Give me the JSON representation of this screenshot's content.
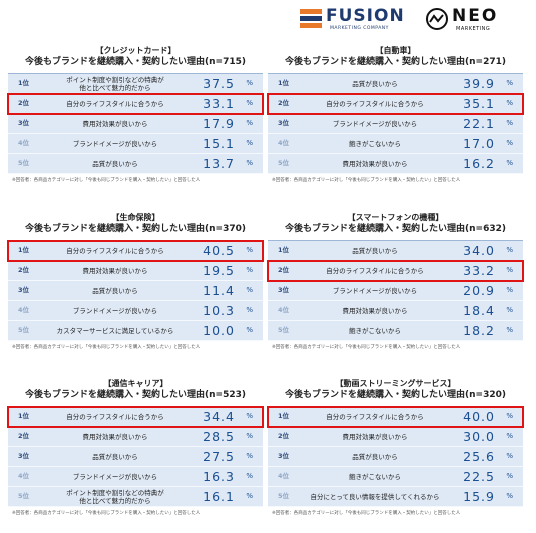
{
  "logos": {
    "fusion": "FUSION",
    "fusion_sub": "MARKETING COMPANY",
    "neo": "NEO",
    "neo_sub": "MARKETING"
  },
  "colors": {
    "highlight": "#e01414",
    "value": "#1a4f92",
    "row_bg": "#dfe9f5",
    "fusion_orange": "#e8792b",
    "fusion_navy": "#1e3a6e"
  },
  "panels": [
    {
      "category": "【クレジットカード】",
      "subtitle": "今後もブランドを継続購入・契約したい理由(n=715)",
      "note": "※回答者：各商品カテゴリーに対し「今後も同じブランドを購入・契約したい」と回答した人",
      "rows": [
        {
          "rank": "1位",
          "label": "ポイント制度や割引などの特典が\n他と比べて魅力的だから",
          "value": "37.5",
          "unit": "%",
          "highlight": false
        },
        {
          "rank": "2位",
          "label": "自分のライフスタイルに合うから",
          "value": "33.1",
          "unit": "%",
          "highlight": true
        },
        {
          "rank": "3位",
          "label": "費用対効果が良いから",
          "value": "17.9",
          "unit": "%",
          "highlight": false
        },
        {
          "rank": "4位",
          "label": "ブランドイメージが良いから",
          "value": "15.1",
          "unit": "%",
          "highlight": false
        },
        {
          "rank": "5位",
          "label": "品質が良いから",
          "value": "13.7",
          "unit": "%",
          "highlight": false
        }
      ]
    },
    {
      "category": "【自動車】",
      "subtitle": "今後もブランドを継続購入・契約したい理由(n=271)",
      "note": "※回答者：各商品カテゴリーに対し「今後も同じブランドを購入・契約したい」と回答した人",
      "rows": [
        {
          "rank": "1位",
          "label": "品質が良いから",
          "value": "39.9",
          "unit": "%",
          "highlight": false
        },
        {
          "rank": "2位",
          "label": "自分のライフスタイルに合うから",
          "value": "35.1",
          "unit": "%",
          "highlight": true
        },
        {
          "rank": "3位",
          "label": "ブランドイメージが良いから",
          "value": "22.1",
          "unit": "%",
          "highlight": false
        },
        {
          "rank": "4位",
          "label": "飽きがこないから",
          "value": "17.0",
          "unit": "%",
          "highlight": false
        },
        {
          "rank": "5位",
          "label": "費用対効果が良いから",
          "value": "16.2",
          "unit": "%",
          "highlight": false
        }
      ]
    },
    {
      "category": "【生命保険】",
      "subtitle": "今後もブランドを継続購入・契約したい理由(n=370)",
      "note": "※回答者：各商品カテゴリーに対し「今後も同じブランドを購入・契約したい」と回答した人",
      "rows": [
        {
          "rank": "1位",
          "label": "自分のライフスタイルに合うから",
          "value": "40.5",
          "unit": "%",
          "highlight": true
        },
        {
          "rank": "2位",
          "label": "費用対効果が良いから",
          "value": "19.5",
          "unit": "%",
          "highlight": false
        },
        {
          "rank": "3位",
          "label": "品質が良いから",
          "value": "11.4",
          "unit": "%",
          "highlight": false
        },
        {
          "rank": "4位",
          "label": "ブランドイメージが良いから",
          "value": "10.3",
          "unit": "%",
          "highlight": false
        },
        {
          "rank": "5位",
          "label": "カスタマーサービスに満足しているから",
          "value": "10.0",
          "unit": "%",
          "highlight": false
        }
      ]
    },
    {
      "category": "【スマートフォンの機種】",
      "subtitle": "今後もブランドを継続購入・契約したい理由(n=632)",
      "note": "※回答者：各商品カテゴリーに対し「今後も同じブランドを購入・契約したい」と回答した人",
      "rows": [
        {
          "rank": "1位",
          "label": "品質が良いから",
          "value": "34.0",
          "unit": "%",
          "highlight": false
        },
        {
          "rank": "2位",
          "label": "自分のライフスタイルに合うから",
          "value": "33.2",
          "unit": "%",
          "highlight": true
        },
        {
          "rank": "3位",
          "label": "ブランドイメージが良いから",
          "value": "20.9",
          "unit": "%",
          "highlight": false
        },
        {
          "rank": "4位",
          "label": "費用対効果が良いから",
          "value": "18.4",
          "unit": "%",
          "highlight": false
        },
        {
          "rank": "5位",
          "label": "飽きがこないから",
          "value": "18.2",
          "unit": "%",
          "highlight": false
        }
      ]
    },
    {
      "category": "【通信キャリア】",
      "subtitle": "今後もブランドを継続購入・契約したい理由(n=523)",
      "note": "※回答者：各商品カテゴリーに対し「今後も同じブランドを購入・契約したい」と回答した人",
      "rows": [
        {
          "rank": "1位",
          "label": "自分のライフスタイルに合うから",
          "value": "34.4",
          "unit": "%",
          "highlight": true
        },
        {
          "rank": "2位",
          "label": "費用対効果が良いから",
          "value": "28.5",
          "unit": "%",
          "highlight": false
        },
        {
          "rank": "3位",
          "label": "品質が良いから",
          "value": "27.5",
          "unit": "%",
          "highlight": false
        },
        {
          "rank": "4位",
          "label": "ブランドイメージが良いから",
          "value": "16.3",
          "unit": "%",
          "highlight": false
        },
        {
          "rank": "5位",
          "label": "ポイント制度や割引などの特典が\n他と比べて魅力的だから",
          "value": "16.1",
          "unit": "%",
          "highlight": false
        }
      ]
    },
    {
      "category": "【動画ストリーミングサービス】",
      "subtitle": "今後もブランドを継続購入・契約したい理由(n=320)",
      "note": "※回答者：各商品カテゴリーに対し「今後も同じブランドを購入・契約したい」と回答した人",
      "rows": [
        {
          "rank": "1位",
          "label": "自分のライフスタイルに合うから",
          "value": "40.0",
          "unit": "%",
          "highlight": true
        },
        {
          "rank": "2位",
          "label": "費用対効果が良いから",
          "value": "30.0",
          "unit": "%",
          "highlight": false
        },
        {
          "rank": "3位",
          "label": "品質が良いから",
          "value": "25.6",
          "unit": "%",
          "highlight": false
        },
        {
          "rank": "4位",
          "label": "飽きがこないから",
          "value": "22.5",
          "unit": "%",
          "highlight": false
        },
        {
          "rank": "5位",
          "label": "自分にとって良い情報を提供してくれるから",
          "value": "15.9",
          "unit": "%",
          "highlight": false
        }
      ]
    }
  ]
}
